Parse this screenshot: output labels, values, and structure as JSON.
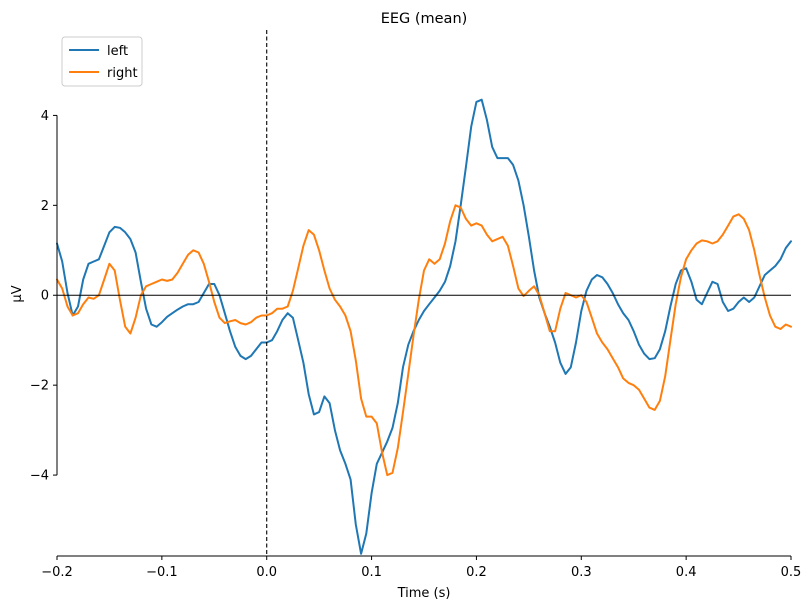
{
  "chart_data": {
    "type": "line",
    "title": "EEG (mean)",
    "xlabel": "Time (s)",
    "ylabel": "µV",
    "xlim": [
      -0.2,
      0.5
    ],
    "ylim": [
      -5.8,
      5.9
    ],
    "x_ticks": [
      -0.2,
      -0.1,
      0.0,
      0.1,
      0.2,
      0.3,
      0.4,
      0.5
    ],
    "x_tick_labels": [
      "−0.2",
      "−0.1",
      "0.0",
      "0.1",
      "0.2",
      "0.3",
      "0.4",
      "0.5"
    ],
    "y_ticks": [
      4,
      2,
      0,
      -2,
      -4
    ],
    "y_tick_labels": [
      "4",
      "2",
      "0",
      "−2",
      "−4"
    ],
    "y_spine_range": [
      -4,
      4
    ],
    "zero_line": true,
    "event_marker_x": 0.0,
    "grid": false,
    "legend_position": "top-left",
    "series": [
      {
        "name": "left",
        "color": "#1f77b4",
        "points": [
          [
            -0.2,
            1.15
          ],
          [
            -0.195,
            0.75
          ],
          [
            -0.19,
            0.05
          ],
          [
            -0.185,
            -0.45
          ],
          [
            -0.18,
            -0.25
          ],
          [
            -0.175,
            0.35
          ],
          [
            -0.17,
            0.7
          ],
          [
            -0.165,
            0.75
          ],
          [
            -0.16,
            0.8
          ],
          [
            -0.155,
            1.1
          ],
          [
            -0.15,
            1.4
          ],
          [
            -0.145,
            1.52
          ],
          [
            -0.14,
            1.5
          ],
          [
            -0.135,
            1.4
          ],
          [
            -0.13,
            1.25
          ],
          [
            -0.125,
            0.95
          ],
          [
            -0.12,
            0.3
          ],
          [
            -0.115,
            -0.3
          ],
          [
            -0.11,
            -0.65
          ],
          [
            -0.105,
            -0.7
          ],
          [
            -0.1,
            -0.6
          ],
          [
            -0.095,
            -0.48
          ],
          [
            -0.09,
            -0.4
          ],
          [
            -0.085,
            -0.32
          ],
          [
            -0.08,
            -0.25
          ],
          [
            -0.075,
            -0.2
          ],
          [
            -0.07,
            -0.2
          ],
          [
            -0.065,
            -0.15
          ],
          [
            -0.06,
            0.05
          ],
          [
            -0.055,
            0.25
          ],
          [
            -0.05,
            0.25
          ],
          [
            -0.045,
            0.0
          ],
          [
            -0.04,
            -0.4
          ],
          [
            -0.035,
            -0.8
          ],
          [
            -0.03,
            -1.15
          ],
          [
            -0.025,
            -1.35
          ],
          [
            -0.02,
            -1.42
          ],
          [
            -0.015,
            -1.35
          ],
          [
            -0.01,
            -1.2
          ],
          [
            -0.005,
            -1.05
          ],
          [
            0.0,
            -1.05
          ],
          [
            0.005,
            -1.0
          ],
          [
            0.01,
            -0.8
          ],
          [
            0.015,
            -0.55
          ],
          [
            0.02,
            -0.4
          ],
          [
            0.025,
            -0.5
          ],
          [
            0.03,
            -1.0
          ],
          [
            0.035,
            -1.5
          ],
          [
            0.04,
            -2.2
          ],
          [
            0.045,
            -2.65
          ],
          [
            0.05,
            -2.6
          ],
          [
            0.055,
            -2.25
          ],
          [
            0.06,
            -2.4
          ],
          [
            0.065,
            -3.0
          ],
          [
            0.07,
            -3.45
          ],
          [
            0.075,
            -3.75
          ],
          [
            0.08,
            -4.1
          ],
          [
            0.085,
            -5.1
          ],
          [
            0.09,
            -5.75
          ],
          [
            0.095,
            -5.3
          ],
          [
            0.1,
            -4.4
          ],
          [
            0.105,
            -3.75
          ],
          [
            0.11,
            -3.5
          ],
          [
            0.115,
            -3.25
          ],
          [
            0.12,
            -2.95
          ],
          [
            0.125,
            -2.4
          ],
          [
            0.13,
            -1.6
          ],
          [
            0.135,
            -1.1
          ],
          [
            0.14,
            -0.8
          ],
          [
            0.145,
            -0.55
          ],
          [
            0.15,
            -0.35
          ],
          [
            0.155,
            -0.2
          ],
          [
            0.16,
            -0.05
          ],
          [
            0.165,
            0.1
          ],
          [
            0.17,
            0.3
          ],
          [
            0.175,
            0.65
          ],
          [
            0.18,
            1.2
          ],
          [
            0.185,
            2.0
          ],
          [
            0.19,
            2.85
          ],
          [
            0.195,
            3.75
          ],
          [
            0.2,
            4.3
          ],
          [
            0.205,
            4.35
          ],
          [
            0.21,
            3.9
          ],
          [
            0.215,
            3.3
          ],
          [
            0.22,
            3.05
          ],
          [
            0.225,
            3.05
          ],
          [
            0.23,
            3.05
          ],
          [
            0.235,
            2.9
          ],
          [
            0.24,
            2.55
          ],
          [
            0.245,
            2.0
          ],
          [
            0.25,
            1.3
          ],
          [
            0.255,
            0.55
          ],
          [
            0.26,
            -0.05
          ],
          [
            0.265,
            -0.4
          ],
          [
            0.27,
            -0.7
          ],
          [
            0.275,
            -1.05
          ],
          [
            0.28,
            -1.5
          ],
          [
            0.285,
            -1.75
          ],
          [
            0.29,
            -1.6
          ],
          [
            0.295,
            -1.05
          ],
          [
            0.3,
            -0.35
          ],
          [
            0.305,
            0.1
          ],
          [
            0.31,
            0.35
          ],
          [
            0.315,
            0.45
          ],
          [
            0.32,
            0.4
          ],
          [
            0.325,
            0.25
          ],
          [
            0.33,
            0.05
          ],
          [
            0.335,
            -0.2
          ],
          [
            0.34,
            -0.4
          ],
          [
            0.345,
            -0.55
          ],
          [
            0.35,
            -0.8
          ],
          [
            0.355,
            -1.1
          ],
          [
            0.36,
            -1.3
          ],
          [
            0.365,
            -1.42
          ],
          [
            0.37,
            -1.4
          ],
          [
            0.375,
            -1.2
          ],
          [
            0.38,
            -0.8
          ],
          [
            0.385,
            -0.25
          ],
          [
            0.39,
            0.25
          ],
          [
            0.395,
            0.55
          ],
          [
            0.4,
            0.6
          ],
          [
            0.405,
            0.3
          ],
          [
            0.41,
            -0.1
          ],
          [
            0.415,
            -0.2
          ],
          [
            0.42,
            0.05
          ],
          [
            0.425,
            0.3
          ],
          [
            0.43,
            0.25
          ],
          [
            0.435,
            -0.15
          ],
          [
            0.44,
            -0.35
          ],
          [
            0.445,
            -0.3
          ],
          [
            0.45,
            -0.15
          ],
          [
            0.455,
            -0.05
          ],
          [
            0.46,
            -0.15
          ],
          [
            0.465,
            -0.05
          ],
          [
            0.47,
            0.2
          ],
          [
            0.475,
            0.45
          ],
          [
            0.48,
            0.55
          ],
          [
            0.485,
            0.65
          ],
          [
            0.49,
            0.8
          ],
          [
            0.495,
            1.05
          ],
          [
            0.5,
            1.2
          ]
        ]
      },
      {
        "name": "right",
        "color": "#ff7f0e",
        "points": [
          [
            -0.2,
            0.35
          ],
          [
            -0.195,
            0.15
          ],
          [
            -0.19,
            -0.25
          ],
          [
            -0.185,
            -0.45
          ],
          [
            -0.18,
            -0.4
          ],
          [
            -0.175,
            -0.2
          ],
          [
            -0.17,
            -0.05
          ],
          [
            -0.165,
            -0.08
          ],
          [
            -0.16,
            0.0
          ],
          [
            -0.155,
            0.35
          ],
          [
            -0.15,
            0.7
          ],
          [
            -0.145,
            0.55
          ],
          [
            -0.14,
            -0.1
          ],
          [
            -0.135,
            -0.7
          ],
          [
            -0.13,
            -0.85
          ],
          [
            -0.125,
            -0.5
          ],
          [
            -0.12,
            0.0
          ],
          [
            -0.115,
            0.2
          ],
          [
            -0.11,
            0.25
          ],
          [
            -0.105,
            0.3
          ],
          [
            -0.1,
            0.35
          ],
          [
            -0.095,
            0.32
          ],
          [
            -0.09,
            0.35
          ],
          [
            -0.085,
            0.5
          ],
          [
            -0.08,
            0.7
          ],
          [
            -0.075,
            0.9
          ],
          [
            -0.07,
            1.0
          ],
          [
            -0.065,
            0.95
          ],
          [
            -0.06,
            0.7
          ],
          [
            -0.055,
            0.3
          ],
          [
            -0.05,
            -0.15
          ],
          [
            -0.045,
            -0.5
          ],
          [
            -0.04,
            -0.62
          ],
          [
            -0.035,
            -0.58
          ],
          [
            -0.03,
            -0.55
          ],
          [
            -0.025,
            -0.62
          ],
          [
            -0.02,
            -0.65
          ],
          [
            -0.015,
            -0.6
          ],
          [
            -0.01,
            -0.5
          ],
          [
            -0.005,
            -0.45
          ],
          [
            0.0,
            -0.45
          ],
          [
            0.005,
            -0.4
          ],
          [
            0.01,
            -0.3
          ],
          [
            0.015,
            -0.3
          ],
          [
            0.02,
            -0.25
          ],
          [
            0.025,
            0.1
          ],
          [
            0.03,
            0.6
          ],
          [
            0.035,
            1.1
          ],
          [
            0.04,
            1.45
          ],
          [
            0.045,
            1.35
          ],
          [
            0.05,
            1.0
          ],
          [
            0.055,
            0.55
          ],
          [
            0.06,
            0.15
          ],
          [
            0.065,
            -0.1
          ],
          [
            0.07,
            -0.25
          ],
          [
            0.075,
            -0.45
          ],
          [
            0.08,
            -0.8
          ],
          [
            0.085,
            -1.45
          ],
          [
            0.09,
            -2.3
          ],
          [
            0.095,
            -2.7
          ],
          [
            0.1,
            -2.7
          ],
          [
            0.105,
            -2.85
          ],
          [
            0.11,
            -3.5
          ],
          [
            0.115,
            -4.0
          ],
          [
            0.12,
            -3.95
          ],
          [
            0.125,
            -3.4
          ],
          [
            0.13,
            -2.6
          ],
          [
            0.135,
            -1.75
          ],
          [
            0.14,
            -0.9
          ],
          [
            0.145,
            -0.1
          ],
          [
            0.15,
            0.55
          ],
          [
            0.155,
            0.8
          ],
          [
            0.16,
            0.7
          ],
          [
            0.165,
            0.8
          ],
          [
            0.17,
            1.15
          ],
          [
            0.175,
            1.65
          ],
          [
            0.18,
            2.0
          ],
          [
            0.185,
            1.95
          ],
          [
            0.19,
            1.7
          ],
          [
            0.195,
            1.55
          ],
          [
            0.2,
            1.6
          ],
          [
            0.205,
            1.55
          ],
          [
            0.21,
            1.35
          ],
          [
            0.215,
            1.2
          ],
          [
            0.22,
            1.25
          ],
          [
            0.225,
            1.3
          ],
          [
            0.23,
            1.1
          ],
          [
            0.235,
            0.65
          ],
          [
            0.24,
            0.15
          ],
          [
            0.245,
            -0.02
          ],
          [
            0.25,
            0.1
          ],
          [
            0.255,
            0.2
          ],
          [
            0.26,
            0.0
          ],
          [
            0.265,
            -0.4
          ],
          [
            0.27,
            -0.8
          ],
          [
            0.275,
            -0.8
          ],
          [
            0.28,
            -0.3
          ],
          [
            0.285,
            0.05
          ],
          [
            0.29,
            0.0
          ],
          [
            0.295,
            -0.05
          ],
          [
            0.3,
            0.0
          ],
          [
            0.305,
            -0.15
          ],
          [
            0.31,
            -0.5
          ],
          [
            0.315,
            -0.85
          ],
          [
            0.32,
            -1.05
          ],
          [
            0.325,
            -1.2
          ],
          [
            0.33,
            -1.4
          ],
          [
            0.335,
            -1.6
          ],
          [
            0.34,
            -1.85
          ],
          [
            0.345,
            -1.95
          ],
          [
            0.35,
            -2.0
          ],
          [
            0.355,
            -2.1
          ],
          [
            0.36,
            -2.3
          ],
          [
            0.365,
            -2.5
          ],
          [
            0.37,
            -2.55
          ],
          [
            0.375,
            -2.35
          ],
          [
            0.38,
            -1.8
          ],
          [
            0.385,
            -1.0
          ],
          [
            0.39,
            -0.2
          ],
          [
            0.395,
            0.4
          ],
          [
            0.4,
            0.8
          ],
          [
            0.405,
            1.0
          ],
          [
            0.41,
            1.15
          ],
          [
            0.415,
            1.22
          ],
          [
            0.42,
            1.2
          ],
          [
            0.425,
            1.15
          ],
          [
            0.43,
            1.2
          ],
          [
            0.435,
            1.35
          ],
          [
            0.44,
            1.55
          ],
          [
            0.445,
            1.75
          ],
          [
            0.45,
            1.8
          ],
          [
            0.455,
            1.7
          ],
          [
            0.46,
            1.45
          ],
          [
            0.465,
            1.0
          ],
          [
            0.47,
            0.45
          ],
          [
            0.475,
            -0.05
          ],
          [
            0.48,
            -0.45
          ],
          [
            0.485,
            -0.7
          ],
          [
            0.49,
            -0.75
          ],
          [
            0.495,
            -0.65
          ],
          [
            0.5,
            -0.7
          ]
        ]
      }
    ]
  }
}
